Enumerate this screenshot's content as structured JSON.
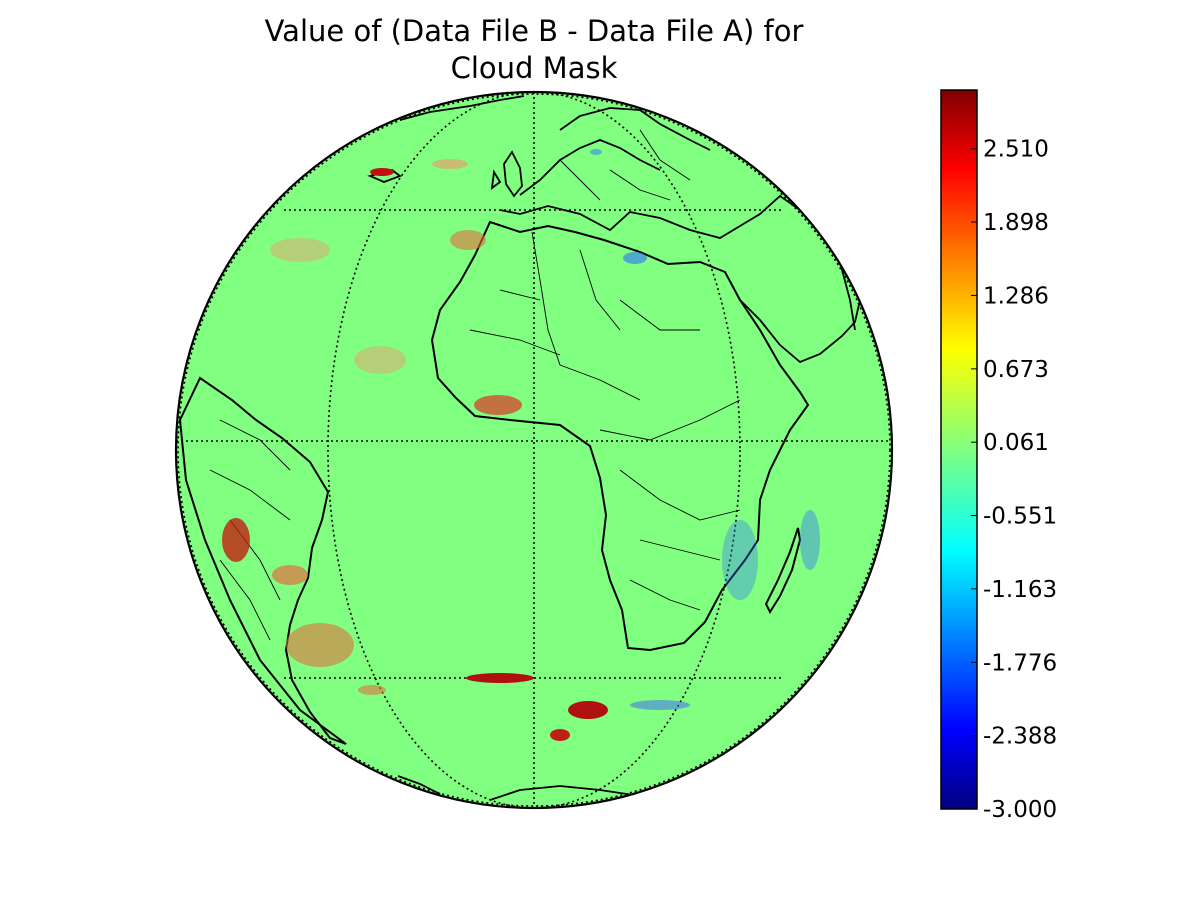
{
  "title": {
    "line1": "Value of (Data File B - Data File A) for",
    "line2": "Cloud Mask"
  },
  "map": {
    "projection": "orthographic",
    "background_value_color": "#80ff80",
    "graticule": "dotted",
    "features": [
      "coastlines",
      "country-borders",
      "graticule"
    ]
  },
  "colorbar": {
    "colormap": "jet",
    "min": -3.0,
    "max": 3.0,
    "tick_labels": [
      "2.510",
      "1.898",
      "1.286",
      "0.673",
      "0.061",
      "-0.551",
      "-1.163",
      "-1.776",
      "-2.388",
      "-3.000"
    ],
    "tick_values": [
      2.51,
      1.898,
      1.286,
      0.673,
      0.061,
      -0.551,
      -1.163,
      -1.776,
      -2.388,
      -3.0
    ]
  }
}
